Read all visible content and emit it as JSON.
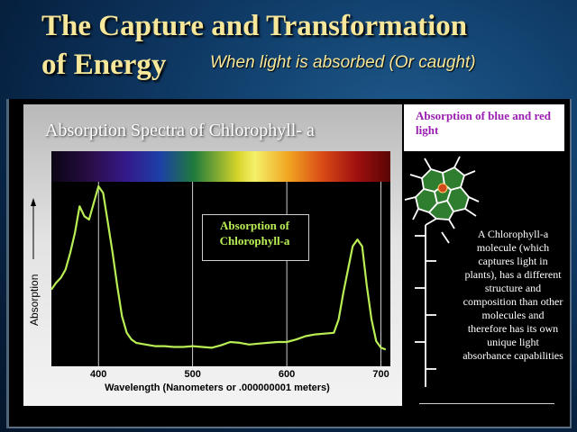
{
  "slide": {
    "title": "The Capture and Transformation of Energy",
    "title_line1": "The Capture and Transformation",
    "title_line2": "of Energy",
    "subtitle": "When light is absorbed (Or caught)",
    "callout": "Absorption of blue and red light",
    "description": "A Chlorophyll-a molecule (which captures light in plants), has a different structure and composition than other molecules and therefore has its own unique light absorbance capabilities",
    "title_color": "#f6e79a",
    "callout_color": "#9b1db1",
    "curve_color": "#b9ee55"
  },
  "chart_data": {
    "type": "line",
    "title": "Absorption Spectra of Chlorophyll- a",
    "xlabel": "Wavelength (Nanometers or .000000001 meters)",
    "ylabel": "Absorption",
    "x_ticks": [
      400,
      500,
      600,
      700
    ],
    "xlim": [
      350,
      710
    ],
    "ylim": [
      0,
      1
    ],
    "grid": "vertical lines at ticks",
    "annotation": "Absorption of Chlorophyll-a",
    "series": [
      {
        "x": [
          350,
          355,
          360,
          365,
          370,
          375,
          380,
          385,
          390,
          395,
          400,
          405,
          410,
          415,
          420,
          425,
          430,
          435,
          440,
          450,
          460,
          470,
          480,
          490,
          500,
          510,
          520,
          530,
          540,
          550,
          560,
          570,
          580,
          590,
          600,
          610,
          620,
          630,
          640,
          650,
          655,
          660,
          665,
          670,
          675,
          680,
          685,
          690,
          695,
          700,
          705
        ],
        "y": [
          0.38,
          0.42,
          0.45,
          0.5,
          0.6,
          0.72,
          0.88,
          0.82,
          0.8,
          0.9,
          1.0,
          0.96,
          0.78,
          0.6,
          0.4,
          0.22,
          0.12,
          0.08,
          0.06,
          0.05,
          0.04,
          0.04,
          0.035,
          0.035,
          0.04,
          0.035,
          0.03,
          0.045,
          0.065,
          0.06,
          0.05,
          0.055,
          0.06,
          0.065,
          0.065,
          0.08,
          0.1,
          0.11,
          0.115,
          0.12,
          0.2,
          0.36,
          0.5,
          0.64,
          0.68,
          0.64,
          0.4,
          0.2,
          0.07,
          0.03,
          0.02
        ]
      }
    ]
  }
}
